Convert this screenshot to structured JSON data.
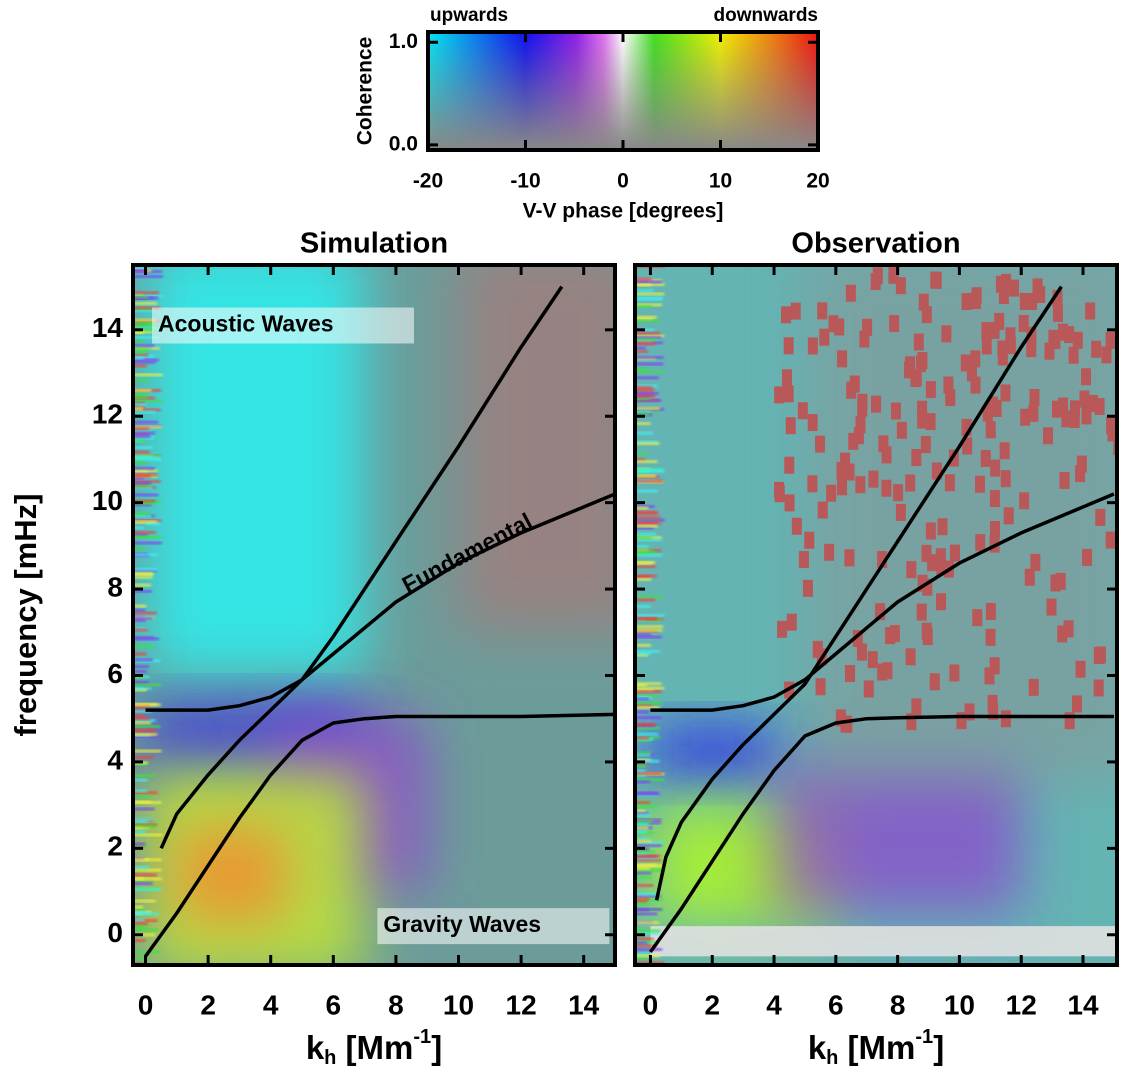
{
  "chart_data": [
    {
      "type": "colorbar",
      "ylabel": "Coherence",
      "xlabel": "V-V phase [degrees]",
      "left_label": "upwards",
      "right_label": "downwards",
      "xlim": [
        -20,
        20
      ],
      "xticks": [
        -20,
        -10,
        0,
        10,
        20
      ],
      "ylim": [
        -0.05,
        1.1
      ],
      "yticks": [
        {
          "value": 0,
          "label": "0.0"
        },
        {
          "value": 1,
          "label": "1.0"
        }
      ]
    },
    {
      "type": "line",
      "title": "Simulation",
      "ylabel": "frequency [mHz]",
      "xlabel": [
        "k",
        "h",
        " [Mm",
        "-1",
        "]"
      ],
      "annotations": [
        "Acoustic Waves",
        "Fundamental",
        "Gravity Waves"
      ],
      "xlim": [
        -0.4,
        15
      ],
      "ylim": [
        -0.7,
        15.5
      ],
      "xticks": [
        0,
        2,
        4,
        6,
        8,
        10,
        12,
        14
      ],
      "yticks": [
        0,
        2,
        4,
        6,
        8,
        10,
        12,
        14
      ],
      "series": [
        {
          "color": "#000000",
          "x": [
            0.5,
            1,
            2,
            3,
            4,
            5,
            6,
            8,
            10,
            12,
            13.3
          ],
          "values": [
            2,
            2.8,
            3.7,
            4.5,
            5.2,
            5.9,
            6.9,
            9.1,
            11.3,
            13.6,
            15
          ]
        },
        {
          "color": "#000000",
          "x": [
            0,
            1,
            2,
            3,
            4,
            5,
            6,
            8,
            10,
            12,
            15
          ],
          "values": [
            5.2,
            5.2,
            5.2,
            5.3,
            5.5,
            5.9,
            6.5,
            7.7,
            8.6,
            9.3,
            10.2
          ]
        },
        {
          "color": "#000000",
          "x": [
            0,
            1,
            2,
            3,
            4,
            5,
            6,
            7,
            8,
            10,
            12,
            15
          ],
          "values": [
            -0.5,
            0.5,
            1.6,
            2.7,
            3.7,
            4.5,
            4.9,
            5,
            5.05,
            5.05,
            5.05,
            5.1
          ]
        }
      ]
    },
    {
      "type": "line",
      "title": "Observation",
      "xlabel": [
        "k",
        "h",
        " [Mm",
        "-1",
        "]"
      ],
      "xlim": [
        -0.5,
        15.1
      ],
      "ylim": [
        -0.7,
        15.5
      ],
      "xticks": [
        0,
        2,
        4,
        6,
        8,
        10,
        12,
        14
      ],
      "series": [
        {
          "color": "#000000",
          "x": [
            0.2,
            0.5,
            1,
            2,
            3,
            4,
            5,
            6,
            8,
            10,
            12,
            13.3
          ],
          "values": [
            0.8,
            1.8,
            2.6,
            3.6,
            4.4,
            5.1,
            5.8,
            6.9,
            9.1,
            11.3,
            13.6,
            15
          ]
        },
        {
          "color": "#000000",
          "x": [
            0,
            1,
            2,
            3,
            4,
            5,
            6,
            8,
            10,
            12,
            15
          ],
          "values": [
            5.2,
            5.2,
            5.2,
            5.3,
            5.5,
            5.9,
            6.5,
            7.7,
            8.6,
            9.3,
            10.2
          ]
        },
        {
          "color": "#000000",
          "x": [
            0,
            1,
            2,
            3,
            4,
            5,
            6,
            7,
            8,
            10,
            12,
            15
          ],
          "values": [
            -0.4,
            0.6,
            1.7,
            2.8,
            3.8,
            4.6,
            4.9,
            5,
            5.02,
            5.05,
            5.05,
            5.05
          ]
        }
      ]
    }
  ]
}
